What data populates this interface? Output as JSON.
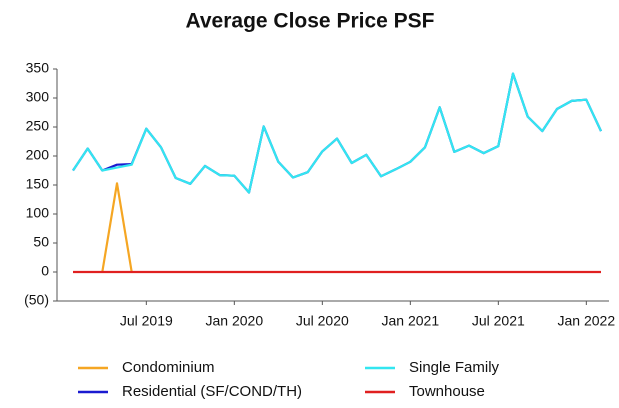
{
  "chart_data": {
    "type": "line",
    "title": "Average Close Price PSF",
    "categories": [
      null,
      null,
      null,
      null,
      null,
      "Jul 2019",
      null,
      null,
      null,
      null,
      null,
      "Jan 2020",
      null,
      null,
      null,
      null,
      null,
      "Jul 2020",
      null,
      null,
      null,
      null,
      null,
      "Jan 2021",
      null,
      null,
      null,
      null,
      null,
      "Jul 2021",
      null,
      null,
      null,
      null,
      null,
      "Jan 2022",
      null
    ],
    "series": [
      {
        "name": "Condominium",
        "color": "#f5a623",
        "values": [
          null,
          null,
          0,
          153,
          0,
          null,
          null,
          null,
          null,
          null,
          null,
          null,
          null,
          null,
          null,
          null,
          null,
          null,
          null,
          null,
          null,
          null,
          null,
          null,
          null,
          null,
          null,
          null,
          null,
          null,
          null,
          null,
          null,
          null,
          null,
          null,
          null
        ]
      },
      {
        "name": "Single Family",
        "color": "#33e6f0",
        "values": [
          175,
          213,
          175,
          180,
          185,
          247,
          215,
          162,
          152,
          183,
          167,
          166,
          137,
          251,
          190,
          163,
          172,
          208,
          230,
          188,
          202,
          165,
          177,
          190,
          215,
          284,
          207,
          218,
          205,
          217,
          342,
          268,
          243,
          281,
          295,
          297,
          243
        ]
      },
      {
        "name": "Residential (SF/COND/TH)",
        "color": "#1a1ad0",
        "values": [
          175,
          213,
          175,
          185,
          186,
          247,
          215,
          162,
          152,
          183,
          167,
          166,
          137,
          251,
          190,
          163,
          172,
          208,
          230,
          188,
          202,
          165,
          177,
          190,
          215,
          284,
          207,
          218,
          205,
          217,
          342,
          268,
          243,
          281,
          295,
          297,
          243
        ]
      },
      {
        "name": "Townhouse",
        "color": "#e02020",
        "values": [
          0,
          0,
          0,
          0,
          0,
          0,
          0,
          0,
          0,
          0,
          0,
          0,
          0,
          0,
          0,
          0,
          0,
          0,
          0,
          0,
          0,
          0,
          0,
          0,
          0,
          0,
          0,
          0,
          0,
          0,
          0,
          0,
          0,
          0,
          0,
          0,
          0
        ]
      }
    ],
    "ylim": [
      -50,
      350
    ],
    "yticks": [
      {
        "value": -50,
        "label": "(50)"
      },
      0,
      50,
      100,
      150,
      200,
      250,
      300,
      350
    ],
    "grid": false,
    "legend": "bottom"
  }
}
